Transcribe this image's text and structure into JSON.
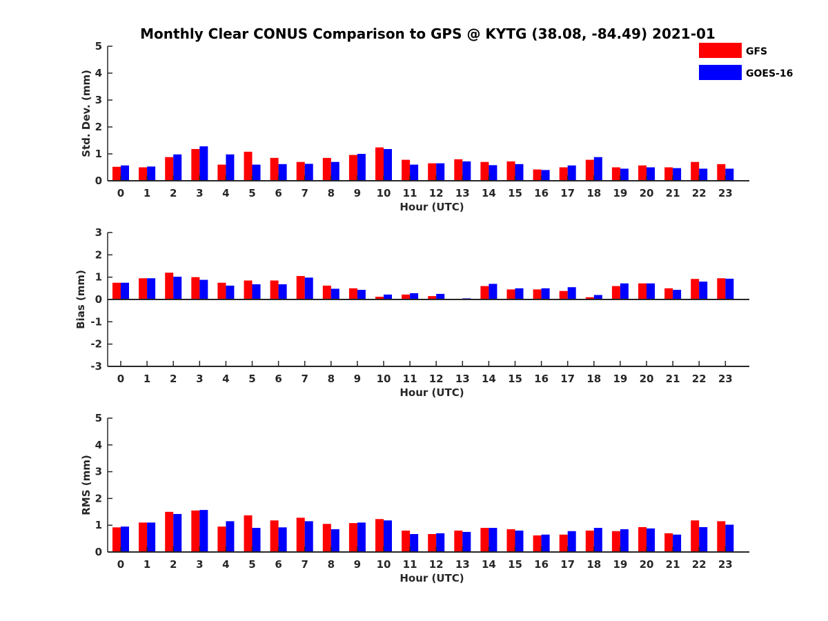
{
  "colors": {
    "gfs": "#ff0000",
    "goes": "#0000ff",
    "axis": "#262626"
  },
  "legend": {
    "items": [
      {
        "label": "GFS",
        "color": "#ff0000"
      },
      {
        "label": "GOES-16",
        "color": "#0000ff"
      }
    ],
    "placement": "top-right"
  },
  "chart_data": [
    {
      "type": "bar",
      "title": "Monthly Clear CONUS Comparison to GPS @ KYTG (38.08, -84.49) 2021-01",
      "xlabel": "Hour (UTC)",
      "ylabel": "Std. Dev. (mm)",
      "ylim": [
        0,
        5
      ],
      "yticks": [
        "0",
        "1",
        "2",
        "3",
        "4",
        "5"
      ],
      "categories": [
        "0",
        "1",
        "2",
        "3",
        "4",
        "5",
        "6",
        "7",
        "8",
        "9",
        "10",
        "11",
        "12",
        "13",
        "14",
        "15",
        "16",
        "17",
        "18",
        "19",
        "20",
        "21",
        "22",
        "23"
      ],
      "series": [
        {
          "name": "GFS",
          "values": [
            0.52,
            0.5,
            0.88,
            1.18,
            0.6,
            1.08,
            0.85,
            0.7,
            0.85,
            0.96,
            1.24,
            0.78,
            0.65,
            0.8,
            0.7,
            0.72,
            0.42,
            0.5,
            0.78,
            0.5,
            0.57,
            0.5,
            0.7,
            0.62
          ]
        },
        {
          "name": "GOES-16",
          "values": [
            0.57,
            0.53,
            0.98,
            1.28,
            0.98,
            0.6,
            0.62,
            0.63,
            0.7,
            1.0,
            1.18,
            0.6,
            0.65,
            0.72,
            0.58,
            0.62,
            0.4,
            0.57,
            0.88,
            0.45,
            0.5,
            0.47,
            0.45,
            0.45
          ]
        }
      ]
    },
    {
      "type": "bar",
      "title": "",
      "xlabel": "Hour (UTC)",
      "ylabel": "Bias (mm)",
      "ylim": [
        -3,
        3
      ],
      "yticks": [
        "-3",
        "-2",
        "-1",
        "0",
        "1",
        "2",
        "3"
      ],
      "categories": [
        "0",
        "1",
        "2",
        "3",
        "4",
        "5",
        "6",
        "7",
        "8",
        "9",
        "10",
        "11",
        "12",
        "13",
        "14",
        "15",
        "16",
        "17",
        "18",
        "19",
        "20",
        "21",
        "22",
        "23"
      ],
      "series": [
        {
          "name": "GFS",
          "values": [
            0.75,
            0.95,
            1.2,
            1.0,
            0.75,
            0.85,
            0.85,
            1.05,
            0.62,
            0.5,
            0.12,
            0.22,
            0.15,
            0.0,
            0.6,
            0.45,
            0.45,
            0.38,
            0.1,
            0.6,
            0.72,
            0.5,
            0.92,
            0.95
          ]
        },
        {
          "name": "GOES-16",
          "values": [
            0.75,
            0.95,
            1.02,
            0.88,
            0.62,
            0.68,
            0.68,
            0.98,
            0.48,
            0.43,
            0.22,
            0.28,
            0.25,
            0.05,
            0.7,
            0.5,
            0.5,
            0.55,
            0.2,
            0.72,
            0.72,
            0.43,
            0.8,
            0.93
          ]
        }
      ]
    },
    {
      "type": "bar",
      "title": "",
      "xlabel": "Hour (UTC)",
      "ylabel": "RMS (mm)",
      "ylim": [
        0,
        5
      ],
      "yticks": [
        "0",
        "1",
        "2",
        "3",
        "4",
        "5"
      ],
      "categories": [
        "0",
        "1",
        "2",
        "3",
        "4",
        "5",
        "6",
        "7",
        "8",
        "9",
        "10",
        "11",
        "12",
        "13",
        "14",
        "15",
        "16",
        "17",
        "18",
        "19",
        "20",
        "21",
        "22",
        "23"
      ],
      "series": [
        {
          "name": "GFS",
          "values": [
            0.92,
            1.1,
            1.5,
            1.55,
            0.95,
            1.37,
            1.18,
            1.28,
            1.05,
            1.08,
            1.23,
            0.8,
            0.67,
            0.8,
            0.9,
            0.85,
            0.62,
            0.65,
            0.8,
            0.78,
            0.93,
            0.7,
            1.18,
            1.15
          ]
        },
        {
          "name": "GOES-16",
          "values": [
            0.95,
            1.1,
            1.42,
            1.57,
            1.15,
            0.9,
            0.92,
            1.15,
            0.85,
            1.1,
            1.18,
            0.67,
            0.7,
            0.75,
            0.9,
            0.8,
            0.65,
            0.78,
            0.9,
            0.85,
            0.88,
            0.65,
            0.93,
            1.02
          ]
        }
      ]
    }
  ]
}
